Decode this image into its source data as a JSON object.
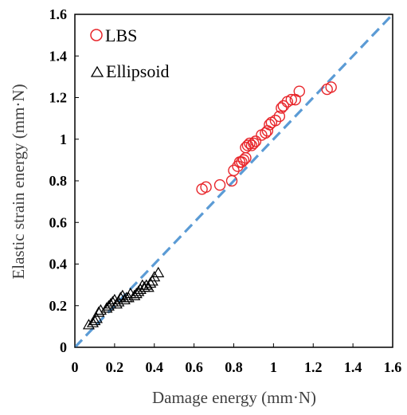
{
  "chart_data": {
    "type": "scatter",
    "xlabel": "Damage energy (mm·N)",
    "ylabel": "Elastic strain energy (mm·N)",
    "xlim": [
      0,
      1.6
    ],
    "ylim": [
      0,
      1.6
    ],
    "x_ticks": [
      "0",
      "0.2",
      "0.4",
      "0.6",
      "0.8",
      "1",
      "1.2",
      "1.4",
      "1.6"
    ],
    "y_ticks": [
      "0",
      "0.2",
      "0.4",
      "0.6",
      "0.8",
      "1",
      "1.2",
      "1.4",
      "1.6"
    ],
    "grid": false,
    "legend_position": "top-left",
    "reference_line": {
      "style": "dashed",
      "color": "#5B9BD5",
      "from": [
        0,
        0
      ],
      "to": [
        1.6,
        1.6
      ]
    },
    "series": [
      {
        "name": "LBS",
        "marker": "circle",
        "color": "#E8262B",
        "points": [
          [
            0.64,
            0.76
          ],
          [
            0.66,
            0.77
          ],
          [
            0.73,
            0.78
          ],
          [
            0.79,
            0.8
          ],
          [
            0.8,
            0.85
          ],
          [
            0.82,
            0.87
          ],
          [
            0.83,
            0.89
          ],
          [
            0.84,
            0.89
          ],
          [
            0.85,
            0.9
          ],
          [
            0.86,
            0.91
          ],
          [
            0.86,
            0.96
          ],
          [
            0.87,
            0.97
          ],
          [
            0.88,
            0.98
          ],
          [
            0.89,
            0.97
          ],
          [
            0.9,
            0.98
          ],
          [
            0.91,
            0.99
          ],
          [
            0.94,
            1.02
          ],
          [
            0.96,
            1.03
          ],
          [
            0.97,
            1.04
          ],
          [
            0.98,
            1.07
          ],
          [
            0.99,
            1.08
          ],
          [
            1.01,
            1.09
          ],
          [
            1.03,
            1.11
          ],
          [
            1.04,
            1.15
          ],
          [
            1.05,
            1.16
          ],
          [
            1.07,
            1.18
          ],
          [
            1.09,
            1.19
          ],
          [
            1.11,
            1.19
          ],
          [
            1.13,
            1.23
          ],
          [
            1.27,
            1.24
          ],
          [
            1.29,
            1.25
          ]
        ]
      },
      {
        "name": "Ellipsoid",
        "marker": "triangle",
        "color": "#000000",
        "points": [
          [
            0.07,
            0.11
          ],
          [
            0.09,
            0.12
          ],
          [
            0.1,
            0.13
          ],
          [
            0.11,
            0.14
          ],
          [
            0.12,
            0.17
          ],
          [
            0.13,
            0.18
          ],
          [
            0.16,
            0.19
          ],
          [
            0.17,
            0.2
          ],
          [
            0.18,
            0.21
          ],
          [
            0.19,
            0.22
          ],
          [
            0.2,
            0.23
          ],
          [
            0.21,
            0.21
          ],
          [
            0.22,
            0.22
          ],
          [
            0.23,
            0.24
          ],
          [
            0.24,
            0.25
          ],
          [
            0.25,
            0.23
          ],
          [
            0.26,
            0.24
          ],
          [
            0.27,
            0.24
          ],
          [
            0.28,
            0.26
          ],
          [
            0.3,
            0.25
          ],
          [
            0.31,
            0.26
          ],
          [
            0.32,
            0.27
          ],
          [
            0.33,
            0.28
          ],
          [
            0.34,
            0.3
          ],
          [
            0.35,
            0.29
          ],
          [
            0.36,
            0.3
          ],
          [
            0.37,
            0.29
          ],
          [
            0.38,
            0.31
          ],
          [
            0.39,
            0.32
          ],
          [
            0.4,
            0.34
          ],
          [
            0.42,
            0.36
          ]
        ]
      }
    ]
  }
}
